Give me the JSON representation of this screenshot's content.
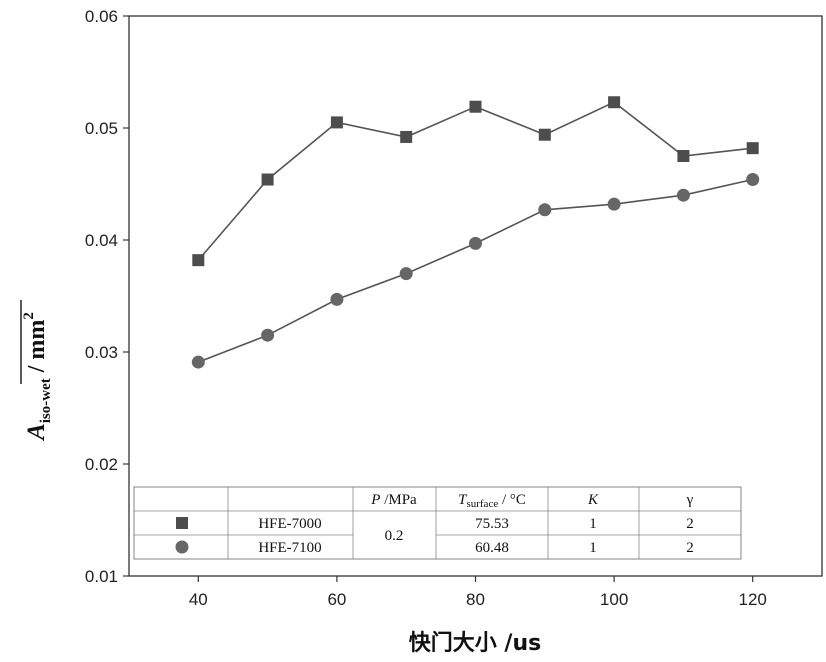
{
  "chart_data": {
    "type": "line",
    "xlabel": "快门大小 /us",
    "ylabel": {
      "symbol": "A",
      "subscript": "iso-wet",
      "unit": " / mm",
      "unit_power": "2"
    },
    "xlim": [
      30,
      130
    ],
    "ylim": [
      0.01,
      0.06
    ],
    "xticks": [
      40,
      60,
      80,
      100,
      120
    ],
    "yticks": [
      "0.01",
      "0.02",
      "0.03",
      "0.04",
      "0.05",
      "0.06"
    ],
    "grid": false,
    "series": [
      {
        "name": "HFE-7000",
        "marker": "square",
        "color": "#4d4d4d",
        "x": [
          40,
          50,
          60,
          70,
          80,
          90,
          100,
          110,
          120
        ],
        "y": [
          0.0382,
          0.0454,
          0.0505,
          0.0492,
          0.0519,
          0.0494,
          0.0523,
          0.0475,
          0.0482
        ]
      },
      {
        "name": "HFE-7100",
        "marker": "circle",
        "color": "#666666",
        "x": [
          40,
          50,
          60,
          70,
          80,
          90,
          100,
          110,
          120
        ],
        "y": [
          0.0291,
          0.0315,
          0.0347,
          0.037,
          0.0397,
          0.0427,
          0.0432,
          0.044,
          0.0454
        ]
      }
    ],
    "table": {
      "placement": "bottom",
      "headers": {
        "p_symbol": "P",
        "p_unit": " /MPa",
        "t_symbol": "T",
        "t_sub": "surface",
        "t_unit": " / °C",
        "k": "K",
        "gamma": "γ"
      },
      "rows": [
        {
          "name": "HFE-7000",
          "T": "75.53",
          "K": "1",
          "gamma": "2"
        },
        {
          "name": "HFE-7100",
          "T": "60.48",
          "K": "1",
          "gamma": "2"
        }
      ],
      "shared_P": "0.2"
    }
  }
}
